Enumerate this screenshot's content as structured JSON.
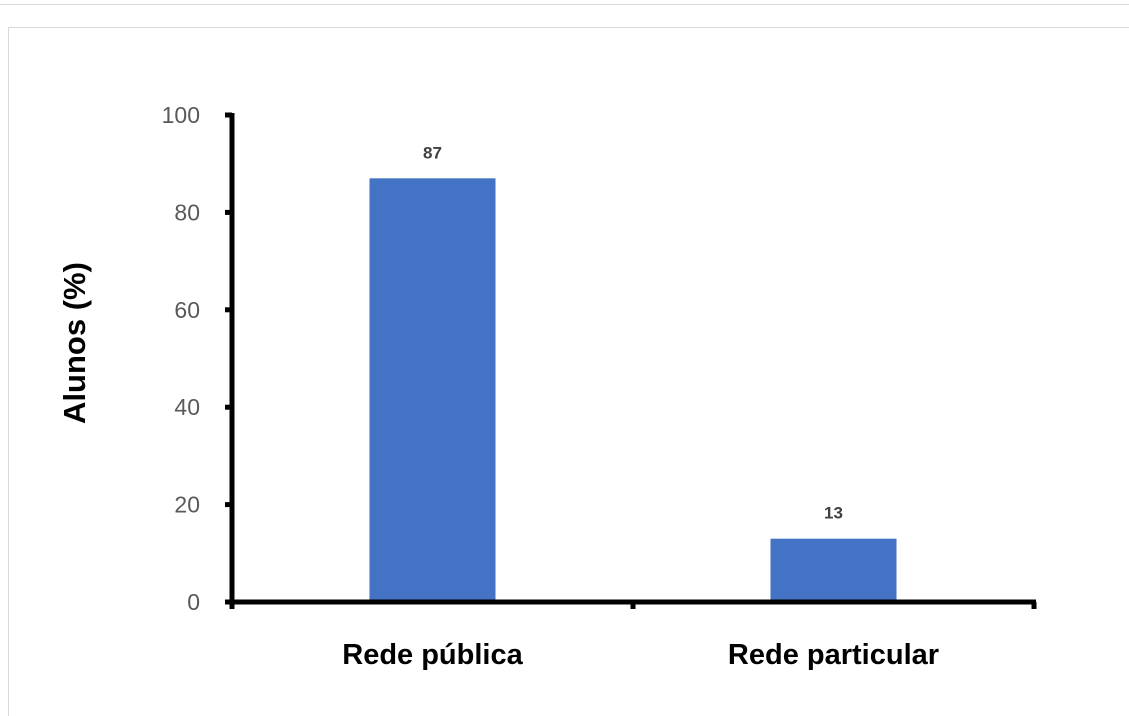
{
  "chart_data": {
    "type": "bar",
    "categories": [
      "Rede pública",
      "Rede particular"
    ],
    "values": [
      87,
      13
    ],
    "data_labels": [
      "87",
      "13"
    ],
    "title": "",
    "xlabel": "",
    "ylabel": "Alunos (%)",
    "ylim": [
      0,
      100
    ],
    "yticks": [
      0,
      20,
      40,
      60,
      80,
      100
    ],
    "grid": false,
    "legend": "none",
    "bar_color": "#4472c4"
  }
}
